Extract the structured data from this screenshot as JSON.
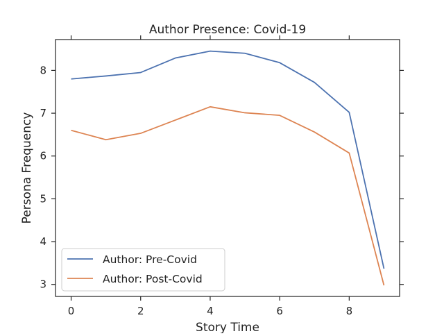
{
  "chart_data": {
    "type": "line",
    "title": "Author Presence: Covid-19",
    "xlabel": "Story Time",
    "ylabel": "Persona Frequency",
    "x": [
      0,
      1,
      2,
      3,
      4,
      5,
      6,
      7,
      8,
      9
    ],
    "xlim": [
      -0.45,
      9.45
    ],
    "ylim": [
      2.72,
      8.72
    ],
    "xticks": [
      0,
      2,
      4,
      6,
      8
    ],
    "xtick_labels": [
      "0",
      "2",
      "4",
      "6",
      "8"
    ],
    "yticks": [
      3,
      4,
      5,
      6,
      7,
      8
    ],
    "ytick_labels": [
      "3",
      "4",
      "5",
      "6",
      "7",
      "8"
    ],
    "grid": false,
    "legend_position": "lower-left",
    "series": [
      {
        "name": "Author: Pre-Covid",
        "color": "#4c72b0",
        "values": [
          7.8,
          7.87,
          7.95,
          8.29,
          8.45,
          8.4,
          8.18,
          7.72,
          7.02,
          3.37
        ]
      },
      {
        "name": "Author: Post-Covid",
        "color": "#dd8452",
        "values": [
          6.6,
          6.38,
          6.53,
          6.84,
          7.15,
          7.01,
          6.95,
          6.56,
          6.07,
          2.98
        ]
      }
    ]
  }
}
